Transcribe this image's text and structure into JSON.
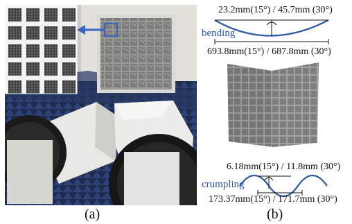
{
  "panel_a": {
    "caption": "(a)"
  },
  "panel_b": {
    "caption": "(b)",
    "bending": {
      "label": "bending",
      "depth_text": "23.2mm(15°) / 45.7mm (30°)",
      "span_text": "693.8mm(15°) / 687.8mm (30°)"
    },
    "crumpling": {
      "label": "crumpling",
      "amplitude_text": "6.18mm(15°) / 11.8mm (30°)",
      "wavelength_text": "173.37mm(15°) / 171.7mm (30°)"
    }
  },
  "colors": {
    "curve_blue": "#2f56a6",
    "arrow_blue": "#3b66c4",
    "absorber_blue": "#23345f",
    "metasurface_grey": "#8c8c8c"
  }
}
